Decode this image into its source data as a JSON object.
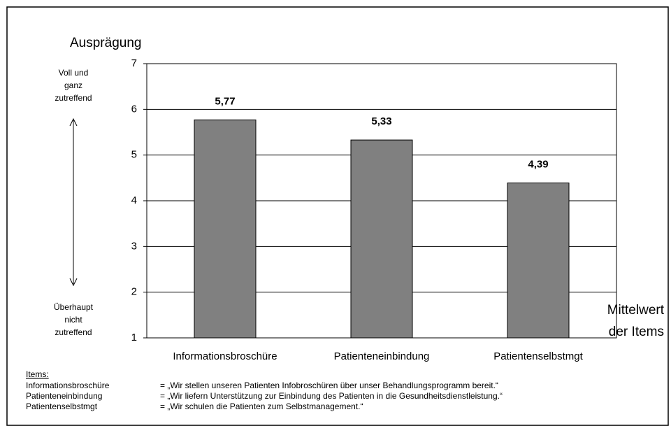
{
  "chart_data": {
    "type": "bar",
    "y_axis_label": "Ausprägung",
    "top_annotation": [
      "Voll und",
      "ganz",
      "zutreffend"
    ],
    "bottom_annotation": [
      "Überhaupt",
      "nicht",
      "zutreffend"
    ],
    "x_axis_label": [
      "Mittelwert",
      "der Items"
    ],
    "categories": [
      "Informationsbroschüre",
      "Patienteneinbindung",
      "Patientenselbstmgt"
    ],
    "values": [
      5.77,
      5.33,
      4.39
    ],
    "value_labels": [
      "5,77",
      "5,33",
      "4,39"
    ],
    "color": "#808080",
    "ylim": [
      1,
      7
    ],
    "yticks": [
      1,
      2,
      3,
      4,
      5,
      6,
      7
    ],
    "grid": true,
    "items_heading": "Items:",
    "items": [
      {
        "name": "Informationsbroschüre",
        "text": "= „Wir stellen unseren Patienten Infobroschüren über unser Behandlungsprogramm bereit.“"
      },
      {
        "name": "Patienteneinbindung",
        "text": "= „Wir liefern Unterstützung zur Einbindung des Patienten in die Gesundheitsdienstleistung.“"
      },
      {
        "name": "Patientenselbstmgt",
        "text": "= „Wir schulen die Patienten zum Selbstmanagement.“"
      }
    ]
  }
}
